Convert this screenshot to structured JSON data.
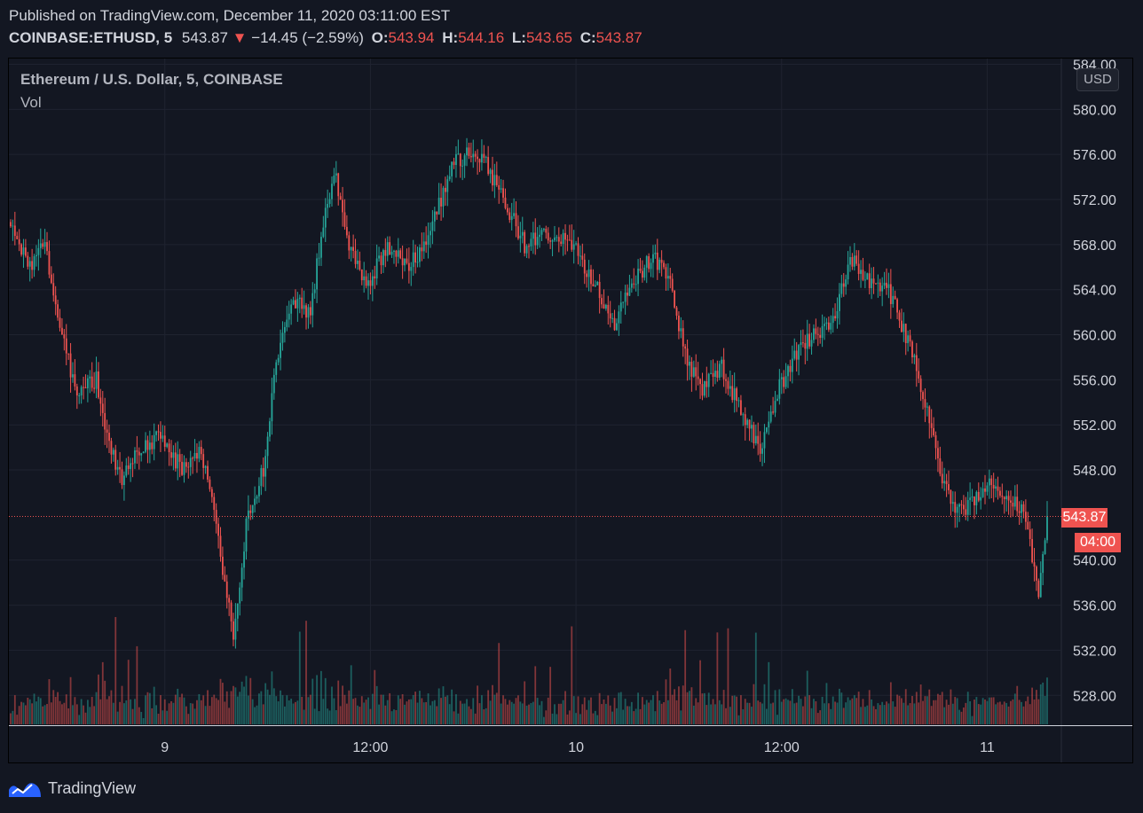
{
  "header": {
    "published_line": "Published on TradingView.com, December 11, 2020 03:11:00 EST",
    "symbol": "COINBASE:ETHUSD, 5",
    "last": "543.87",
    "arrow": "▼",
    "change": "−14.45 (−2.59%)",
    "o_label": "O:",
    "o_value": "543.94",
    "h_label": "H:",
    "h_value": "544.16",
    "l_label": "L:",
    "l_value": "543.65",
    "c_label": "C:",
    "c_value": "543.87"
  },
  "legend": {
    "title": "Ethereum / U.S. Dollar, 5, COINBASE",
    "volume_label": "Vol"
  },
  "currency_button": "USD",
  "last_price_tag": "543.87",
  "countdown_tag": "04:00",
  "brand": "TradingView",
  "colors": {
    "up": "#26a69a",
    "down": "#ef5350",
    "background": "#131722",
    "grid": "#1f2330",
    "axis_text": "#b2b5be"
  },
  "chart_data": {
    "type": "candlestick",
    "ylim": [
      524,
      584
    ],
    "y_ticks": [
      "584.00",
      "580.00",
      "576.00",
      "572.00",
      "568.00",
      "564.00",
      "560.00",
      "556.00",
      "552.00",
      "548.00",
      "540.00",
      "536.00",
      "532.00",
      "528.00"
    ],
    "x_ticks": [
      "9",
      "12:00",
      "10",
      "12:00",
      "11"
    ],
    "close_path": [
      {
        "t": 0,
        "p": 570
      },
      {
        "t": 8,
        "p": 566
      },
      {
        "t": 16,
        "p": 568
      },
      {
        "t": 22,
        "p": 562
      },
      {
        "t": 30,
        "p": 555
      },
      {
        "t": 40,
        "p": 556
      },
      {
        "t": 46,
        "p": 550
      },
      {
        "t": 52,
        "p": 547
      },
      {
        "t": 60,
        "p": 550
      },
      {
        "t": 70,
        "p": 551
      },
      {
        "t": 80,
        "p": 548
      },
      {
        "t": 88,
        "p": 550
      },
      {
        "t": 94,
        "p": 546
      },
      {
        "t": 100,
        "p": 538
      },
      {
        "t": 104,
        "p": 533
      },
      {
        "t": 110,
        "p": 543
      },
      {
        "t": 118,
        "p": 548
      },
      {
        "t": 124,
        "p": 558
      },
      {
        "t": 132,
        "p": 563
      },
      {
        "t": 140,
        "p": 562
      },
      {
        "t": 146,
        "p": 570
      },
      {
        "t": 152,
        "p": 574
      },
      {
        "t": 158,
        "p": 568
      },
      {
        "t": 166,
        "p": 564
      },
      {
        "t": 176,
        "p": 568
      },
      {
        "t": 186,
        "p": 566
      },
      {
        "t": 196,
        "p": 569
      },
      {
        "t": 206,
        "p": 575
      },
      {
        "t": 214,
        "p": 576
      },
      {
        "t": 222,
        "p": 575
      },
      {
        "t": 230,
        "p": 572
      },
      {
        "t": 240,
        "p": 568
      },
      {
        "t": 250,
        "p": 569
      },
      {
        "t": 262,
        "p": 568
      },
      {
        "t": 272,
        "p": 565
      },
      {
        "t": 282,
        "p": 561
      },
      {
        "t": 292,
        "p": 565
      },
      {
        "t": 300,
        "p": 567
      },
      {
        "t": 308,
        "p": 565
      },
      {
        "t": 314,
        "p": 559
      },
      {
        "t": 322,
        "p": 555
      },
      {
        "t": 332,
        "p": 557
      },
      {
        "t": 342,
        "p": 553
      },
      {
        "t": 350,
        "p": 550
      },
      {
        "t": 358,
        "p": 555
      },
      {
        "t": 366,
        "p": 558
      },
      {
        "t": 374,
        "p": 560
      },
      {
        "t": 384,
        "p": 561
      },
      {
        "t": 392,
        "p": 567
      },
      {
        "t": 400,
        "p": 565
      },
      {
        "t": 410,
        "p": 564
      },
      {
        "t": 418,
        "p": 560
      },
      {
        "t": 426,
        "p": 555
      },
      {
        "t": 434,
        "p": 548
      },
      {
        "t": 442,
        "p": 544
      },
      {
        "t": 452,
        "p": 546
      },
      {
        "t": 460,
        "p": 547
      },
      {
        "t": 468,
        "p": 545
      },
      {
        "t": 474,
        "p": 544
      },
      {
        "t": 480,
        "p": 537
      },
      {
        "t": 484,
        "p": 543.87
      }
    ]
  }
}
